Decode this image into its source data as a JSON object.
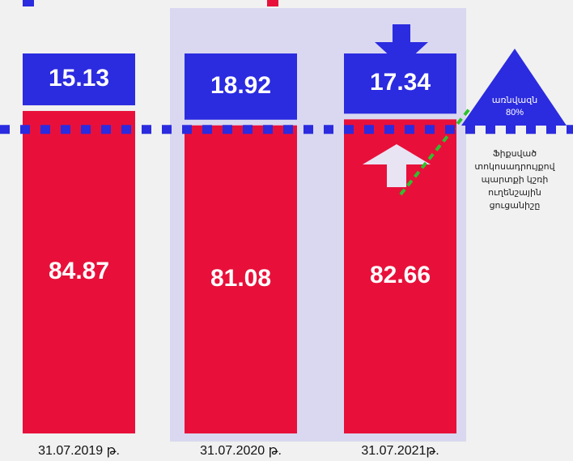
{
  "chart_data": {
    "type": "bar",
    "stacked": true,
    "categories": [
      "31.07.2019 թ.",
      "31.07.2020 թ.",
      "31.07.2021թ."
    ],
    "series": [
      {
        "color": "#e8103a",
        "values": [
          84.87,
          81.08,
          82.66
        ]
      },
      {
        "color": "#2b2be0",
        "values": [
          15.13,
          18.92,
          17.34
        ]
      }
    ],
    "ylim": [
      0,
      100
    ],
    "threshold": 80,
    "threshold_color": "#2b2be0",
    "annotations": [
      "առնվազն",
      "80%",
      "Ֆիքսված",
      "տոկոսադրույքով",
      "պարտքի կշռի",
      "ուղենշային",
      "ցուցանիշը"
    ]
  }
}
